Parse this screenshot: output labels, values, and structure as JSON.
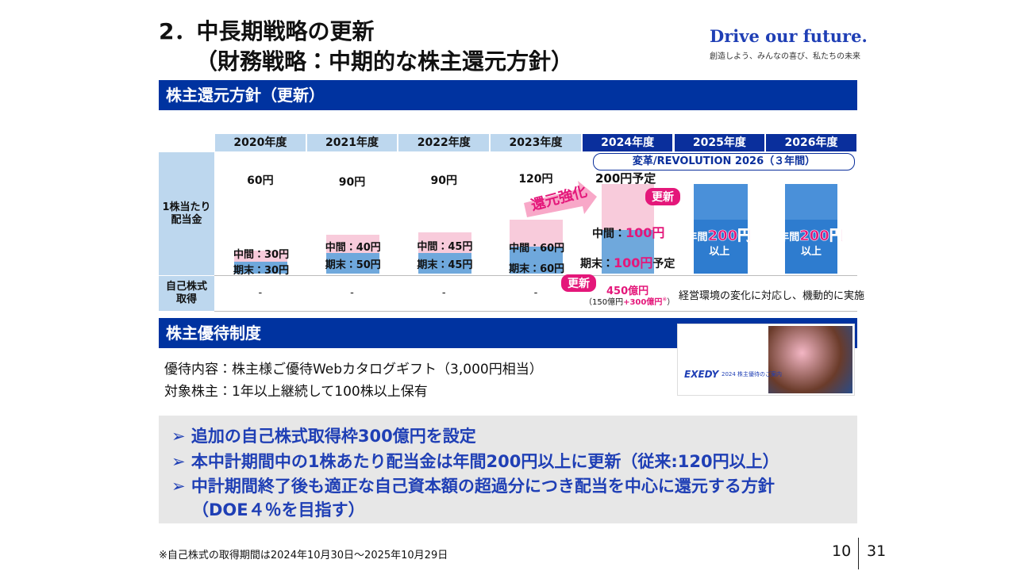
{
  "header": {
    "title_line1": "2．中長期戦略の更新",
    "title_line2": "（財務戦略：中期的な株主還元方針）",
    "brand": "Drive our future.",
    "tagline": "創造しよう、みんなの喜び、私たちの未来"
  },
  "dividend_policy": {
    "heading": "株主還元方針（更新）",
    "years": [
      "2020年度",
      "2021年度",
      "2022年度",
      "2023年度",
      "2024年度",
      "2025年度",
      "2026年度"
    ],
    "revolution_banner": "変革/REVOLUTION 2026（３年間）",
    "dividend_label": [
      "1株当たり",
      "配当金"
    ],
    "buyback_label": [
      "自己株式",
      "取得"
    ],
    "past": [
      {
        "total": "60円",
        "interim": "中間：30円",
        "final": "期末：30円"
      },
      {
        "total": "90円",
        "interim": "中間：40円",
        "final": "期末：50円"
      },
      {
        "total": "90円",
        "interim": "中間：45円",
        "final": "期末：45円"
      },
      {
        "total": "120円",
        "interim": "中間：60円",
        "final": "期末：60円"
      }
    ],
    "plan_2024": {
      "total": "200円予定",
      "interim_label": "中間：",
      "interim_value": "100円",
      "final_label": "期末：",
      "final_value": "100円",
      "final_suffix": "予定"
    },
    "plan_later": [
      {
        "prefix": "年間",
        "value": "200円",
        "suffix": "以上"
      },
      {
        "prefix": "年間",
        "value": "200円",
        "suffix": "以上"
      }
    ],
    "boost_label": "還元強化",
    "update_badges": [
      "更新",
      "更新"
    ],
    "buyback_past": [
      "-",
      "-",
      "-",
      "-"
    ],
    "buyback_2024": {
      "amount": "450億円",
      "detail_open": "（150億円",
      "detail_add": "+300億円",
      "detail_mark": "※",
      "detail_close": "）"
    },
    "buyback_later": "経営環境の変化に対応し、機動的に実施"
  },
  "benefits": {
    "heading": "株主優待制度",
    "lines": [
      "優待内容：株主様ご優待Webカタログギフト（3,000円相当）",
      "対象株主：1年以上継続して100株以上保有"
    ],
    "image": {
      "logo": "EXEDY",
      "title": "2024 株主優待のご案内"
    }
  },
  "highlights": {
    "bullet": "➢",
    "items": [
      "追加の自己株式取得枠300億円を設定",
      "本中計期間中の1株あたり配当金は年間200円以上に更新（従来:120円以上）",
      "中計期間終了後も適正な自己資本額の超過分につき配当を中心に還元する方針"
    ],
    "continuation": "（DOE４％を目指す）"
  },
  "footer": {
    "note": "※自己株式の取得期間は2024年10月30日～2025年10月29日",
    "page": "10",
    "total": "31"
  }
}
